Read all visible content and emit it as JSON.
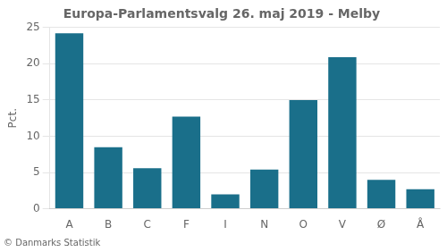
{
  "chart_data": {
    "type": "bar",
    "title": "Europa-Parlamentsvalg 26. maj 2019 - Melby",
    "ylabel": "Pct.",
    "footer": "© Danmarks Statistik",
    "categories": [
      "A",
      "B",
      "C",
      "F",
      "I",
      "N",
      "O",
      "V",
      "Ø",
      "Å"
    ],
    "values": [
      24.2,
      8.5,
      5.6,
      12.7,
      2.0,
      5.4,
      15.0,
      20.9,
      4.0,
      2.7
    ],
    "color": "#1a6f8a",
    "ylim": [
      0,
      25
    ],
    "yticks": [
      0,
      5,
      10,
      15,
      20,
      25
    ],
    "grid": true
  }
}
